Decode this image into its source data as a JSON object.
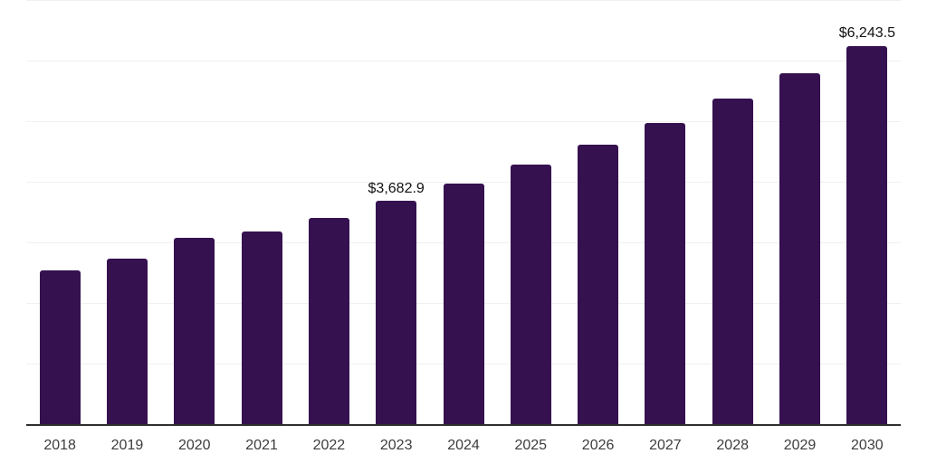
{
  "chart_data": {
    "type": "bar",
    "title": "",
    "xlabel": "",
    "ylabel": "",
    "categories": [
      "2018",
      "2019",
      "2020",
      "2021",
      "2022",
      "2023",
      "2024",
      "2025",
      "2026",
      "2027",
      "2028",
      "2029",
      "2030"
    ],
    "values": [
      2540,
      2730,
      3080,
      3180,
      3405,
      3682.9,
      3970,
      4285,
      4610,
      4970,
      5370,
      5790,
      6243.5
    ],
    "data_labels": [
      {
        "category": "2023",
        "text": "$3,682.9"
      },
      {
        "category": "2030",
        "text": "$6,243.5"
      }
    ],
    "ylim": [
      0,
      7000
    ],
    "gridline_step": 1000,
    "grid": "horizontal",
    "legend_position": "none"
  },
  "colors": {
    "bar": "#351150",
    "axis_line": "#2e2e2e",
    "gridline": "#f0f0f0",
    "tick_label": "#3d3d3d",
    "data_label": "#111111",
    "background": "#ffffff"
  }
}
